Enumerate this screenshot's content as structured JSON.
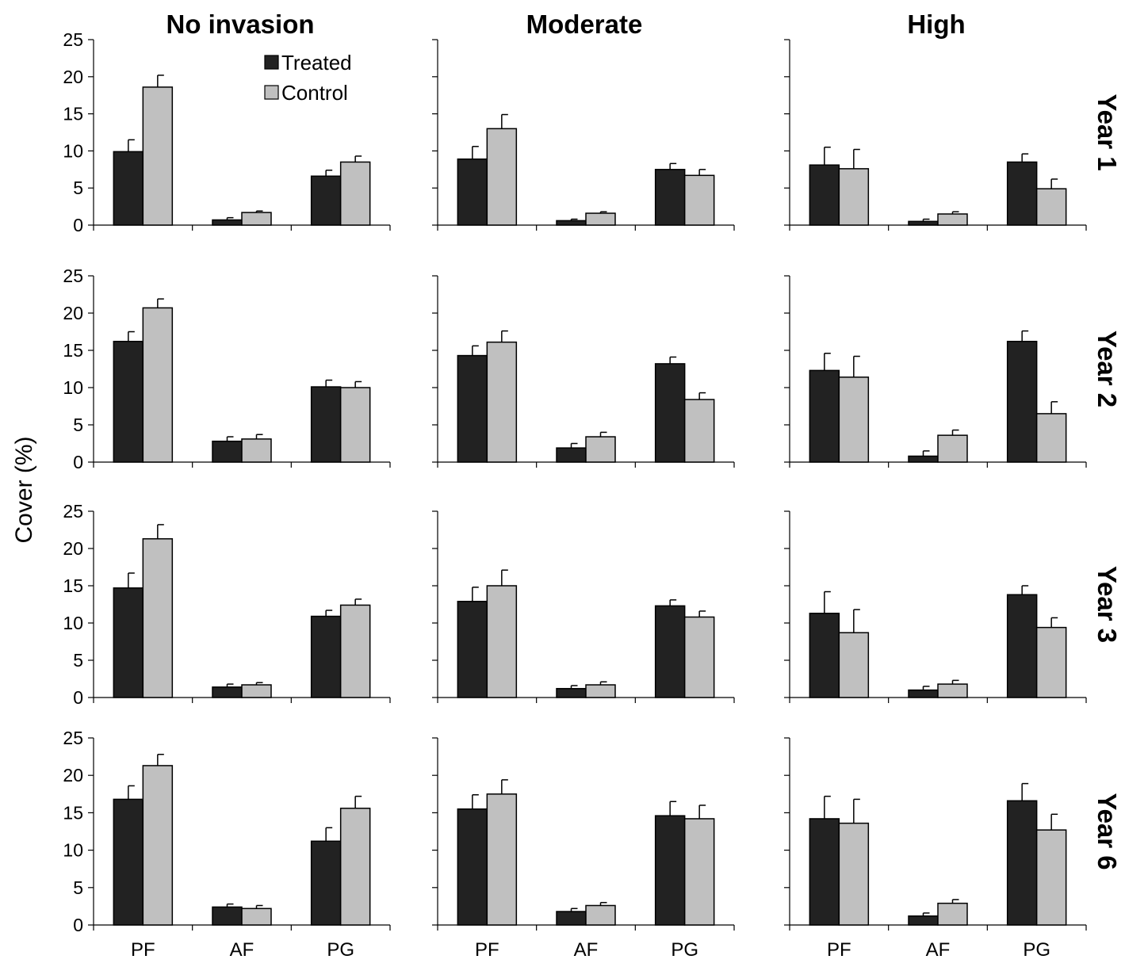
{
  "chart_data": {
    "type": "bar",
    "ylabel": "Cover (%)",
    "ylim": [
      0,
      25
    ],
    "yticks": [
      0,
      5,
      10,
      15,
      20,
      25
    ],
    "categories": [
      "PF",
      "AF",
      "PG"
    ],
    "columns": [
      "No invasion",
      "Moderate",
      "High"
    ],
    "rows": [
      "Year 1",
      "Year 2",
      "Year 3",
      "Year 6"
    ],
    "legend": {
      "position": "top-right of first panel",
      "items": [
        "Treated",
        "Control"
      ]
    },
    "colors": {
      "Treated": "#222222",
      "Control": "#c0c0c0"
    },
    "panels": [
      {
        "row": "Year 1",
        "column": "No invasion",
        "series": [
          {
            "name": "Treated",
            "values": [
              9.9,
              0.7,
              6.6
            ],
            "errors": [
              1.6,
              0.3,
              0.8
            ]
          },
          {
            "name": "Control",
            "values": [
              18.6,
              1.7,
              8.5
            ],
            "errors": [
              1.6,
              0.2,
              0.8
            ]
          }
        ]
      },
      {
        "row": "Year 1",
        "column": "Moderate",
        "series": [
          {
            "name": "Treated",
            "values": [
              8.9,
              0.6,
              7.5
            ],
            "errors": [
              1.7,
              0.2,
              0.8
            ]
          },
          {
            "name": "Control",
            "values": [
              13.0,
              1.6,
              6.7
            ],
            "errors": [
              1.9,
              0.2,
              0.8
            ]
          }
        ]
      },
      {
        "row": "Year 1",
        "column": "High",
        "series": [
          {
            "name": "Treated",
            "values": [
              8.1,
              0.5,
              8.5
            ],
            "errors": [
              2.4,
              0.3,
              1.1
            ]
          },
          {
            "name": "Control",
            "values": [
              7.6,
              1.5,
              4.9
            ],
            "errors": [
              2.6,
              0.3,
              1.3
            ]
          }
        ]
      },
      {
        "row": "Year 2",
        "column": "No invasion",
        "series": [
          {
            "name": "Treated",
            "values": [
              16.2,
              2.8,
              10.1
            ],
            "errors": [
              1.3,
              0.6,
              0.9
            ]
          },
          {
            "name": "Control",
            "values": [
              20.7,
              3.1,
              10.0
            ],
            "errors": [
              1.2,
              0.6,
              0.8
            ]
          }
        ]
      },
      {
        "row": "Year 2",
        "column": "Moderate",
        "series": [
          {
            "name": "Treated",
            "values": [
              14.3,
              1.9,
              13.2
            ],
            "errors": [
              1.3,
              0.6,
              0.9
            ]
          },
          {
            "name": "Control",
            "values": [
              16.1,
              3.4,
              8.4
            ],
            "errors": [
              1.5,
              0.6,
              0.9
            ]
          }
        ]
      },
      {
        "row": "Year 2",
        "column": "High",
        "series": [
          {
            "name": "Treated",
            "values": [
              12.3,
              0.8,
              16.2
            ],
            "errors": [
              2.3,
              0.7,
              1.4
            ]
          },
          {
            "name": "Control",
            "values": [
              11.4,
              3.6,
              6.5
            ],
            "errors": [
              2.8,
              0.7,
              1.6
            ]
          }
        ]
      },
      {
        "row": "Year 3",
        "column": "No invasion",
        "series": [
          {
            "name": "Treated",
            "values": [
              14.7,
              1.4,
              10.9
            ],
            "errors": [
              2.0,
              0.4,
              0.8
            ]
          },
          {
            "name": "Control",
            "values": [
              21.3,
              1.7,
              12.4
            ],
            "errors": [
              1.9,
              0.3,
              0.8
            ]
          }
        ]
      },
      {
        "row": "Year 3",
        "column": "Moderate",
        "series": [
          {
            "name": "Treated",
            "values": [
              12.9,
              1.2,
              12.3
            ],
            "errors": [
              1.9,
              0.4,
              0.8
            ]
          },
          {
            "name": "Control",
            "values": [
              15.0,
              1.7,
              10.8
            ],
            "errors": [
              2.1,
              0.4,
              0.8
            ]
          }
        ]
      },
      {
        "row": "Year 3",
        "column": "High",
        "series": [
          {
            "name": "Treated",
            "values": [
              11.3,
              1.0,
              13.8
            ],
            "errors": [
              2.9,
              0.5,
              1.2
            ]
          },
          {
            "name": "Control",
            "values": [
              8.7,
              1.8,
              9.4
            ],
            "errors": [
              3.1,
              0.5,
              1.3
            ]
          }
        ]
      },
      {
        "row": "Year 6",
        "column": "No invasion",
        "series": [
          {
            "name": "Treated",
            "values": [
              16.8,
              2.4,
              11.2
            ],
            "errors": [
              1.8,
              0.4,
              1.8
            ]
          },
          {
            "name": "Control",
            "values": [
              21.3,
              2.2,
              15.6
            ],
            "errors": [
              1.5,
              0.4,
              1.6
            ]
          }
        ]
      },
      {
        "row": "Year 6",
        "column": "Moderate",
        "series": [
          {
            "name": "Treated",
            "values": [
              15.5,
              1.8,
              14.6
            ],
            "errors": [
              1.9,
              0.4,
              1.9
            ]
          },
          {
            "name": "Control",
            "values": [
              17.5,
              2.6,
              14.2
            ],
            "errors": [
              1.9,
              0.4,
              1.8
            ]
          }
        ]
      },
      {
        "row": "Year 6",
        "column": "High",
        "series": [
          {
            "name": "Treated",
            "values": [
              14.2,
              1.2,
              16.6
            ],
            "errors": [
              3.0,
              0.4,
              2.3
            ]
          },
          {
            "name": "Control",
            "values": [
              13.6,
              2.9,
              12.7
            ],
            "errors": [
              3.2,
              0.5,
              2.1
            ]
          }
        ]
      }
    ]
  }
}
